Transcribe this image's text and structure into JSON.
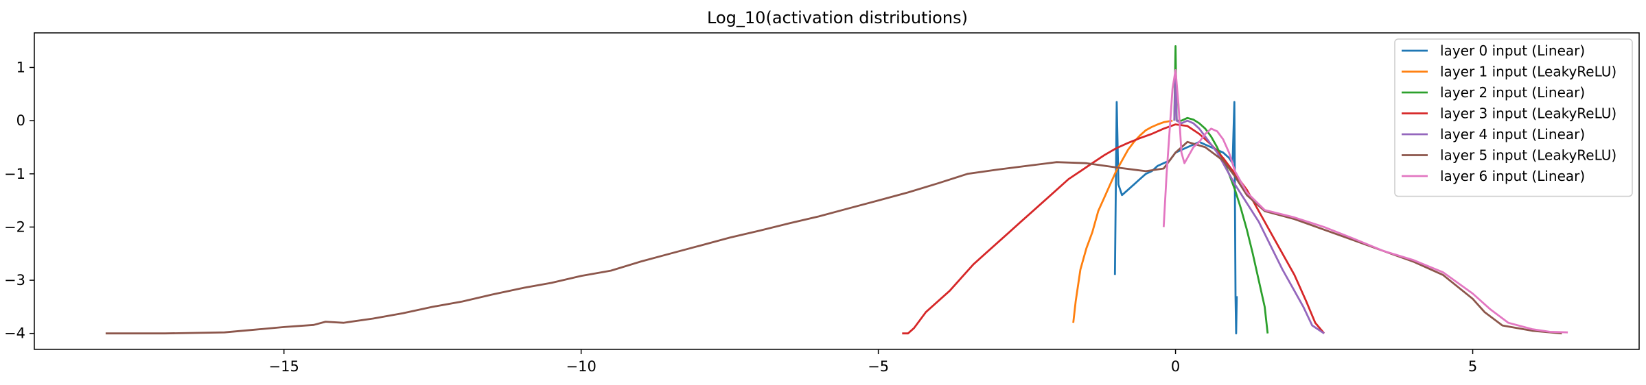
{
  "chart_data": {
    "type": "line",
    "title": "Log_10(activation distributions)",
    "xlabel": "",
    "ylabel": "",
    "xlim": [
      -19.2,
      7.8
    ],
    "ylim": [
      -4.3,
      1.65
    ],
    "xticks": [
      -15,
      -10,
      -5,
      0,
      5
    ],
    "xtick_labels": [
      "−15",
      "−10",
      "−5",
      "0",
      "5"
    ],
    "yticks": [
      1,
      0,
      -1,
      -2,
      -3,
      -4
    ],
    "ytick_labels": [
      "1",
      "0",
      "−1",
      "−2",
      "−3",
      "−4"
    ],
    "grid": false,
    "legend_position": "top-right",
    "series": [
      {
        "name": "layer 0 input (Linear)",
        "color": "#1f77b4",
        "points": [
          [
            -1.02,
            -2.9
          ],
          [
            -0.99,
            0.35
          ],
          [
            -0.96,
            -1.2
          ],
          [
            -0.9,
            -1.4
          ],
          [
            -0.8,
            -1.3
          ],
          [
            -0.7,
            -1.2
          ],
          [
            -0.6,
            -1.1
          ],
          [
            -0.5,
            -1.0
          ],
          [
            -0.4,
            -0.95
          ],
          [
            -0.3,
            -0.85
          ],
          [
            -0.2,
            -0.8
          ],
          [
            -0.1,
            -0.75
          ],
          [
            0.0,
            -0.6
          ],
          [
            0.1,
            -0.55
          ],
          [
            0.2,
            -0.5
          ],
          [
            0.3,
            -0.45
          ],
          [
            0.4,
            -0.4
          ],
          [
            0.5,
            -0.45
          ],
          [
            0.6,
            -0.5
          ],
          [
            0.7,
            -0.55
          ],
          [
            0.8,
            -0.6
          ],
          [
            0.9,
            -0.7
          ],
          [
            0.96,
            -0.8
          ],
          [
            0.99,
            0.35
          ],
          [
            1.01,
            -3.3
          ],
          [
            1.02,
            -4.0
          ],
          [
            1.03,
            -3.3
          ]
        ]
      },
      {
        "name": "layer 1 input (LeakyReLU)",
        "color": "#ff7f0e",
        "points": [
          [
            -1.72,
            -3.8
          ],
          [
            -1.68,
            -3.4
          ],
          [
            -1.6,
            -2.8
          ],
          [
            -1.5,
            -2.4
          ],
          [
            -1.4,
            -2.1
          ],
          [
            -1.3,
            -1.7
          ],
          [
            -1.2,
            -1.45
          ],
          [
            -1.1,
            -1.2
          ],
          [
            -1.0,
            -0.95
          ],
          [
            -0.9,
            -0.75
          ],
          [
            -0.8,
            -0.55
          ],
          [
            -0.7,
            -0.4
          ],
          [
            -0.6,
            -0.28
          ],
          [
            -0.5,
            -0.18
          ],
          [
            -0.4,
            -0.12
          ],
          [
            -0.3,
            -0.07
          ],
          [
            -0.2,
            -0.03
          ],
          [
            -0.1,
            -0.01
          ],
          [
            -0.05,
            0.0
          ]
        ]
      },
      {
        "name": "layer 2 input (Linear)",
        "color": "#2ca02c",
        "points": [
          [
            -0.02,
            0.0
          ],
          [
            0.0,
            1.4
          ],
          [
            0.02,
            0.0
          ],
          [
            0.1,
            0.0
          ],
          [
            0.2,
            0.05
          ],
          [
            0.3,
            0.02
          ],
          [
            0.4,
            -0.05
          ],
          [
            0.5,
            -0.15
          ],
          [
            0.6,
            -0.3
          ],
          [
            0.7,
            -0.5
          ],
          [
            0.8,
            -0.75
          ],
          [
            0.9,
            -1.0
          ],
          [
            1.0,
            -1.3
          ],
          [
            1.1,
            -1.65
          ],
          [
            1.2,
            -2.05
          ],
          [
            1.3,
            -2.5
          ],
          [
            1.4,
            -3.0
          ],
          [
            1.5,
            -3.5
          ],
          [
            1.55,
            -4.0
          ]
        ]
      },
      {
        "name": "layer 3 input (LeakyReLU)",
        "color": "#d62728",
        "points": [
          [
            -4.6,
            -4.0
          ],
          [
            -4.5,
            -4.0
          ],
          [
            -4.4,
            -3.9
          ],
          [
            -4.3,
            -3.75
          ],
          [
            -4.2,
            -3.6
          ],
          [
            -4.0,
            -3.4
          ],
          [
            -3.8,
            -3.2
          ],
          [
            -3.6,
            -2.95
          ],
          [
            -3.4,
            -2.7
          ],
          [
            -3.2,
            -2.5
          ],
          [
            -3.0,
            -2.3
          ],
          [
            -2.8,
            -2.1
          ],
          [
            -2.6,
            -1.9
          ],
          [
            -2.4,
            -1.7
          ],
          [
            -2.2,
            -1.5
          ],
          [
            -2.0,
            -1.3
          ],
          [
            -1.8,
            -1.1
          ],
          [
            -1.6,
            -0.95
          ],
          [
            -1.4,
            -0.8
          ],
          [
            -1.2,
            -0.65
          ],
          [
            -1.0,
            -0.52
          ],
          [
            -0.8,
            -0.42
          ],
          [
            -0.6,
            -0.33
          ],
          [
            -0.4,
            -0.25
          ],
          [
            -0.2,
            -0.15
          ],
          [
            0.0,
            -0.07
          ],
          [
            0.2,
            -0.1
          ],
          [
            0.4,
            -0.25
          ],
          [
            0.6,
            -0.45
          ],
          [
            0.8,
            -0.7
          ],
          [
            1.0,
            -1.0
          ],
          [
            1.2,
            -1.3
          ],
          [
            1.4,
            -1.7
          ],
          [
            1.6,
            -2.1
          ],
          [
            1.8,
            -2.5
          ],
          [
            2.0,
            -2.9
          ],
          [
            2.2,
            -3.4
          ],
          [
            2.35,
            -3.8
          ],
          [
            2.5,
            -4.0
          ]
        ]
      },
      {
        "name": "layer 4 input (Linear)",
        "color": "#9467bd",
        "points": [
          [
            -0.02,
            0.0
          ],
          [
            0.0,
            0.9
          ],
          [
            0.02,
            0.0
          ],
          [
            0.1,
            -0.05
          ],
          [
            0.2,
            0.0
          ],
          [
            0.3,
            -0.05
          ],
          [
            0.4,
            -0.15
          ],
          [
            0.5,
            -0.3
          ],
          [
            0.6,
            -0.45
          ],
          [
            0.7,
            -0.6
          ],
          [
            0.8,
            -0.8
          ],
          [
            0.9,
            -1.0
          ],
          [
            1.0,
            -1.2
          ],
          [
            1.2,
            -1.55
          ],
          [
            1.4,
            -1.9
          ],
          [
            1.6,
            -2.35
          ],
          [
            1.8,
            -2.8
          ],
          [
            2.0,
            -3.2
          ],
          [
            2.15,
            -3.5
          ],
          [
            2.3,
            -3.85
          ],
          [
            2.5,
            -4.0
          ]
        ]
      },
      {
        "name": "layer 5 input (LeakyReLU)",
        "color": "#8c564b",
        "points": [
          [
            -18.0,
            -4.0
          ],
          [
            -17.0,
            -4.0
          ],
          [
            -16.0,
            -3.98
          ],
          [
            -15.5,
            -3.93
          ],
          [
            -15.0,
            -3.88
          ],
          [
            -14.5,
            -3.84
          ],
          [
            -14.3,
            -3.78
          ],
          [
            -14.0,
            -3.8
          ],
          [
            -13.5,
            -3.72
          ],
          [
            -13.0,
            -3.62
          ],
          [
            -12.5,
            -3.5
          ],
          [
            -12.0,
            -3.4
          ],
          [
            -11.5,
            -3.27
          ],
          [
            -11.0,
            -3.15
          ],
          [
            -10.5,
            -3.05
          ],
          [
            -10.0,
            -2.92
          ],
          [
            -9.5,
            -2.82
          ],
          [
            -9.0,
            -2.65
          ],
          [
            -8.5,
            -2.5
          ],
          [
            -8.0,
            -2.35
          ],
          [
            -7.5,
            -2.2
          ],
          [
            -7.0,
            -2.07
          ],
          [
            -6.5,
            -1.93
          ],
          [
            -6.0,
            -1.8
          ],
          [
            -5.5,
            -1.65
          ],
          [
            -5.0,
            -1.5
          ],
          [
            -4.5,
            -1.35
          ],
          [
            -4.0,
            -1.18
          ],
          [
            -3.5,
            -1.0
          ],
          [
            -3.0,
            -0.92
          ],
          [
            -2.5,
            -0.85
          ],
          [
            -2.0,
            -0.78
          ],
          [
            -1.5,
            -0.8
          ],
          [
            -1.0,
            -0.88
          ],
          [
            -0.5,
            -0.95
          ],
          [
            -0.2,
            -0.9
          ],
          [
            0.0,
            -0.6
          ],
          [
            0.2,
            -0.4
          ],
          [
            0.5,
            -0.5
          ],
          [
            0.8,
            -0.75
          ],
          [
            1.0,
            -1.05
          ],
          [
            1.2,
            -1.4
          ],
          [
            1.5,
            -1.7
          ],
          [
            2.0,
            -1.85
          ],
          [
            2.5,
            -2.05
          ],
          [
            3.0,
            -2.25
          ],
          [
            3.5,
            -2.45
          ],
          [
            4.0,
            -2.65
          ],
          [
            4.5,
            -2.9
          ],
          [
            5.0,
            -3.35
          ],
          [
            5.2,
            -3.6
          ],
          [
            5.5,
            -3.85
          ],
          [
            6.0,
            -3.95
          ],
          [
            6.5,
            -4.0
          ]
        ]
      },
      {
        "name": "layer 6 input (Linear)",
        "color": "#e377c2",
        "points": [
          [
            -0.2,
            -2.0
          ],
          [
            -0.15,
            -1.0
          ],
          [
            -0.1,
            -0.2
          ],
          [
            -0.05,
            0.6
          ],
          [
            0.0,
            0.95
          ],
          [
            0.05,
            0.3
          ],
          [
            0.1,
            -0.6
          ],
          [
            0.15,
            -0.8
          ],
          [
            0.2,
            -0.7
          ],
          [
            0.3,
            -0.5
          ],
          [
            0.4,
            -0.4
          ],
          [
            0.5,
            -0.25
          ],
          [
            0.6,
            -0.15
          ],
          [
            0.7,
            -0.2
          ],
          [
            0.8,
            -0.35
          ],
          [
            0.9,
            -0.6
          ],
          [
            1.0,
            -0.95
          ],
          [
            1.2,
            -1.35
          ],
          [
            1.5,
            -1.68
          ],
          [
            2.0,
            -1.82
          ],
          [
            2.5,
            -2.0
          ],
          [
            3.0,
            -2.22
          ],
          [
            3.5,
            -2.45
          ],
          [
            4.0,
            -2.62
          ],
          [
            4.5,
            -2.85
          ],
          [
            5.0,
            -3.25
          ],
          [
            5.3,
            -3.55
          ],
          [
            5.6,
            -3.8
          ],
          [
            6.0,
            -3.92
          ],
          [
            6.3,
            -3.97
          ],
          [
            6.6,
            -3.98
          ]
        ]
      }
    ]
  }
}
